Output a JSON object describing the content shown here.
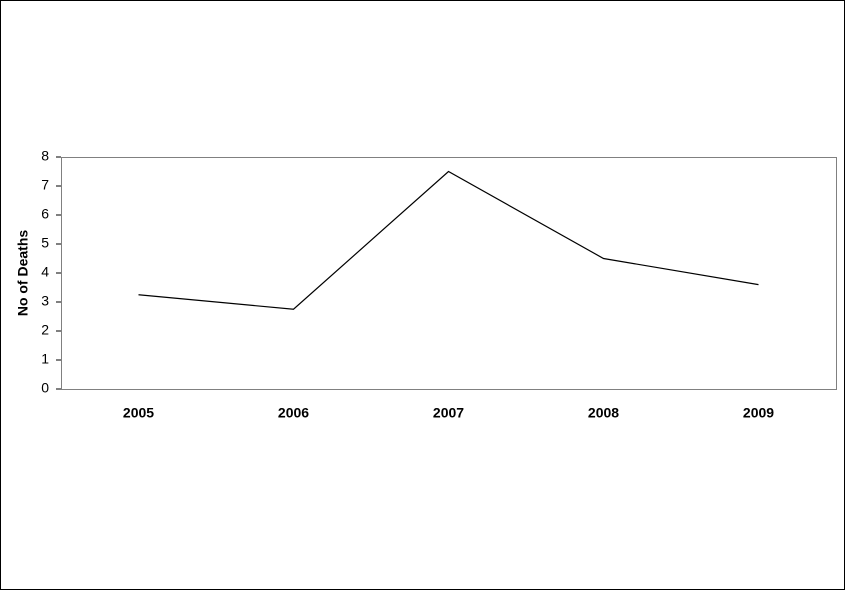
{
  "chart_data": {
    "type": "line",
    "y_label": "No of Deaths",
    "categories": [
      "2005",
      "2006",
      "2007",
      "2008",
      "2009"
    ],
    "values": [
      3.25,
      2.75,
      7.5,
      4.5,
      3.6
    ],
    "color": "#000000",
    "ylim": [
      0,
      8
    ],
    "yticks": [
      0,
      1,
      2,
      3,
      4,
      5,
      6,
      7,
      8
    ],
    "grid": false
  }
}
